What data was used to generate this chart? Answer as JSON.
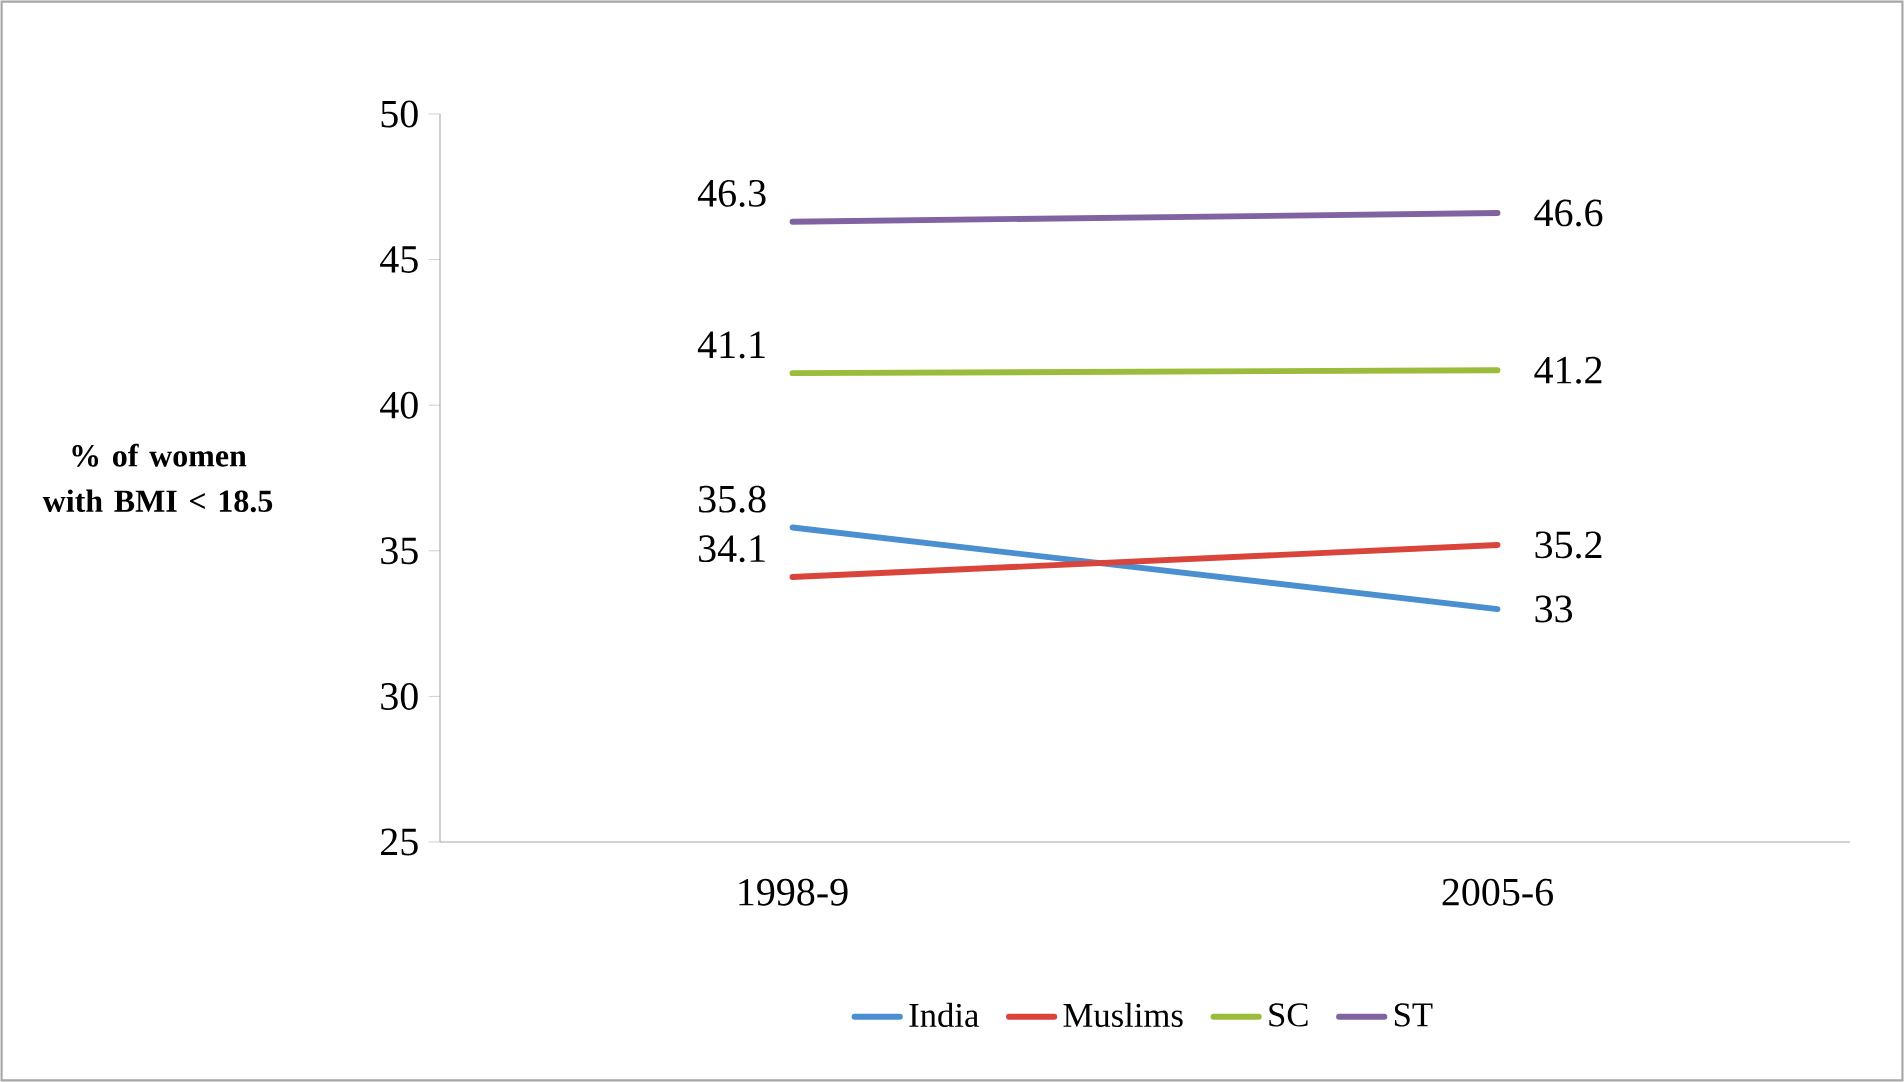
{
  "chart_data": {
    "type": "line",
    "ylabel": "% of women with BMI < 18.5",
    "categories": [
      "1998-9",
      "2005-6"
    ],
    "series": [
      {
        "name": "India",
        "color": "#4a8fd0",
        "values": [
          35.8,
          33
        ]
      },
      {
        "name": "Muslims",
        "color": "#d9443b",
        "values": [
          34.1,
          35.2
        ]
      },
      {
        "name": "SC",
        "color": "#9bbb3b",
        "values": [
          41.1,
          41.2
        ]
      },
      {
        "name": "ST",
        "color": "#8064a2",
        "values": [
          46.3,
          46.6
        ]
      }
    ],
    "ylim": [
      25,
      50
    ],
    "yticks": [
      25,
      30,
      35,
      40,
      45,
      50
    ],
    "data_labels": true,
    "legend": "bottom",
    "grid": false,
    "marker": "none"
  }
}
